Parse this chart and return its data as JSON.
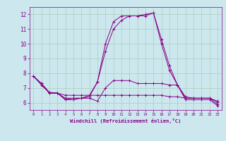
{
  "title": "",
  "xlabel": "Windchill (Refroidissement éolien,°C)",
  "bg_color": "#cce8ee",
  "grid_color": "#aaccbb",
  "line_color": "#880088",
  "xlim": [
    -0.5,
    23.5
  ],
  "ylim": [
    5.5,
    12.5
  ],
  "yticks": [
    6,
    7,
    8,
    9,
    10,
    11,
    12
  ],
  "xticks": [
    0,
    1,
    2,
    3,
    4,
    5,
    6,
    7,
    8,
    9,
    10,
    11,
    12,
    13,
    14,
    15,
    16,
    17,
    18,
    19,
    20,
    21,
    22,
    23
  ],
  "series": [
    [
      7.8,
      7.3,
      6.7,
      6.65,
      6.2,
      6.2,
      6.3,
      6.5,
      7.4,
      10.0,
      11.5,
      11.9,
      11.9,
      11.9,
      12.0,
      12.1,
      10.3,
      8.5,
      7.2,
      6.2,
      6.2,
      6.2,
      6.2,
      5.8
    ],
    [
      7.8,
      7.3,
      6.65,
      6.65,
      6.3,
      6.3,
      6.3,
      6.3,
      6.1,
      7.0,
      7.5,
      7.5,
      7.5,
      7.3,
      7.3,
      7.3,
      7.3,
      7.2,
      7.2,
      6.4,
      6.3,
      6.3,
      6.3,
      6.1
    ],
    [
      7.8,
      7.2,
      6.65,
      6.65,
      6.5,
      6.5,
      6.5,
      6.5,
      6.5,
      6.5,
      6.5,
      6.5,
      6.5,
      6.5,
      6.5,
      6.5,
      6.5,
      6.4,
      6.4,
      6.3,
      6.3,
      6.3,
      6.3,
      6.05
    ],
    [
      7.8,
      7.3,
      6.65,
      6.65,
      6.2,
      6.3,
      6.3,
      6.4,
      7.4,
      9.5,
      11.0,
      11.6,
      11.9,
      11.9,
      11.9,
      12.1,
      10.0,
      8.2,
      7.2,
      6.3,
      6.3,
      6.3,
      6.3,
      5.9
    ]
  ]
}
